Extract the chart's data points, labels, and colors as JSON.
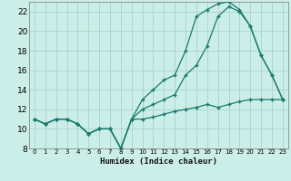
{
  "xlabel": "Humidex (Indice chaleur)",
  "ylabel": "",
  "bg_color": "#cceee8",
  "grid_color": "#aad8d0",
  "line_color": "#1a7a6e",
  "xlim": [
    -0.5,
    23.5
  ],
  "ylim": [
    8,
    23
  ],
  "xticks": [
    0,
    1,
    2,
    3,
    4,
    5,
    6,
    7,
    8,
    9,
    10,
    11,
    12,
    13,
    14,
    15,
    16,
    17,
    18,
    19,
    20,
    21,
    22,
    23
  ],
  "yticks": [
    8,
    10,
    12,
    14,
    16,
    18,
    20,
    22
  ],
  "series1_x": [
    0,
    1,
    2,
    3,
    4,
    5,
    6,
    7,
    8,
    9,
    10,
    11,
    12,
    13,
    14,
    15,
    16,
    17,
    18,
    19,
    20,
    21,
    22,
    23
  ],
  "series1_y": [
    11,
    10.5,
    11,
    11,
    10.5,
    9.5,
    10,
    10,
    8,
    11,
    13,
    14,
    15,
    15.5,
    18,
    21.5,
    22.2,
    22.8,
    23,
    22.2,
    20.5,
    17.5,
    15.5,
    13
  ],
  "series2_x": [
    0,
    1,
    2,
    3,
    4,
    5,
    6,
    7,
    8,
    9,
    10,
    11,
    12,
    13,
    14,
    15,
    16,
    17,
    18,
    19,
    20,
    21,
    22,
    23
  ],
  "series2_y": [
    11,
    10.5,
    11,
    11,
    10.5,
    9.5,
    10,
    10,
    8,
    11,
    12,
    12.5,
    13,
    13.5,
    15.5,
    16.5,
    18.5,
    21.5,
    22.5,
    22,
    20.5,
    17.5,
    15.5,
    13
  ],
  "series3_x": [
    0,
    1,
    2,
    3,
    4,
    5,
    6,
    7,
    8,
    9,
    10,
    11,
    12,
    13,
    14,
    15,
    16,
    17,
    18,
    19,
    20,
    21,
    22,
    23
  ],
  "series3_y": [
    11,
    10.5,
    11,
    11,
    10.5,
    9.5,
    10,
    10,
    8,
    11,
    11,
    11.2,
    11.5,
    11.8,
    12,
    12.2,
    12.5,
    12.2,
    12.5,
    12.8,
    13,
    13,
    13,
    13
  ]
}
